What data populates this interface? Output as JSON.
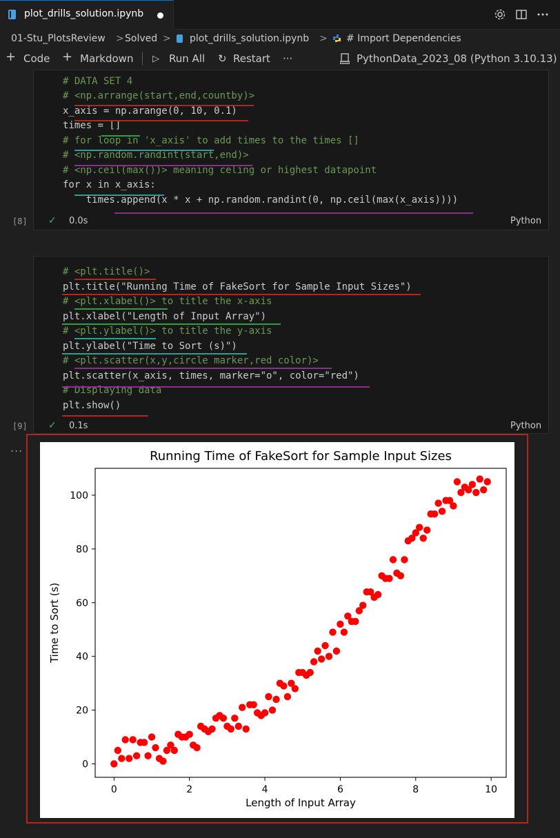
{
  "tab": {
    "title": "plot_drills_solution.ipynb",
    "modified": true
  },
  "breadcrumb": {
    "items": [
      "01-Stu_PlotsReview",
      "Solved",
      "plot_drills_solution.ipynb",
      "# Import Dependencies"
    ],
    "separator": ">"
  },
  "toolbar": {
    "code": "Code",
    "markdown": "Markdown",
    "run_all": "Run All",
    "restart": "Restart",
    "more": "···",
    "kernel": "PythonData_2023_08 (Python 3.10.13)"
  },
  "cells": [
    {
      "exec_count": "[8]",
      "duration": "0.0s",
      "language": "Python",
      "lines": [
        "# DATA SET 4",
        "# <np.arrange(start,end,countby)>",
        "x_axis = np.arange(0, 10, 0.1)",
        "times = []",
        "# for loop in 'x_axis' to add times to the times []",
        "# <np.random.randint(start,end)>",
        "# <np.ceil(max())> meaning celing or highest datapoint",
        "for x in x_axis:",
        "    times.append(x * x + np.random.randint(0, np.ceil(max(x_axis))))"
      ]
    },
    {
      "exec_count": "[9]",
      "duration": "0.1s",
      "language": "Python",
      "lines": [
        "# <plt.title()>",
        "plt.title(\"Running Time of FakeSort for Sample Input Sizes\")",
        "# <plt.xlabel()> to title the x-axis",
        "plt.xlabel(\"Length of Input Array\")",
        "# <plt.ylabel()> to title the y-axis",
        "plt.ylabel(\"Time to Sort (s)\")",
        "# <plt.scatter(x,y,circle marker,red color)>",
        "plt.scatter(x_axis, times, marker=\"o\", color=\"red\")",
        "# Displaying data",
        "plt.show()"
      ]
    }
  ],
  "output_menu": "...",
  "colors": {
    "accent": "#0078d4",
    "marker": "#ff0000",
    "highlight_frame": "#b3261e"
  },
  "chart_data": {
    "type": "scatter",
    "title": "Running Time of FakeSort for Sample Input Sizes",
    "xlabel": "Length of Input Array",
    "ylabel": "Time to Sort (s)",
    "xlim": [
      -0.5,
      10.4
    ],
    "ylim": [
      -5,
      110
    ],
    "xticks": [
      0,
      2,
      4,
      6,
      8,
      10
    ],
    "yticks": [
      0,
      20,
      40,
      60,
      80,
      100
    ],
    "grid": false,
    "marker": "o",
    "color": "red",
    "x": [
      0.0,
      0.1,
      0.2,
      0.3,
      0.4,
      0.5,
      0.6,
      0.7,
      0.8,
      0.9,
      1.0,
      1.1,
      1.2,
      1.3,
      1.4,
      1.5,
      1.6,
      1.7,
      1.8,
      1.9,
      2.0,
      2.1,
      2.2,
      2.3,
      2.4,
      2.5,
      2.6,
      2.7,
      2.8,
      2.9,
      3.0,
      3.1,
      3.2,
      3.3,
      3.4,
      3.5,
      3.6,
      3.7,
      3.8,
      3.9,
      4.0,
      4.1,
      4.2,
      4.3,
      4.4,
      4.5,
      4.6,
      4.7,
      4.8,
      4.9,
      5.0,
      5.1,
      5.2,
      5.3,
      5.4,
      5.5,
      5.6,
      5.7,
      5.8,
      5.9,
      6.0,
      6.1,
      6.2,
      6.3,
      6.4,
      6.5,
      6.6,
      6.7,
      6.8,
      6.9,
      7.0,
      7.1,
      7.2,
      7.3,
      7.4,
      7.5,
      7.6,
      7.7,
      7.8,
      7.9,
      8.0,
      8.1,
      8.2,
      8.3,
      8.4,
      8.5,
      8.6,
      8.7,
      8.8,
      8.9,
      9.0,
      9.1,
      9.2,
      9.3,
      9.4,
      9.5,
      9.6,
      9.7,
      9.8,
      9.9
    ],
    "y": [
      0,
      5,
      2,
      9,
      2,
      9,
      3,
      8,
      8,
      3,
      10,
      6,
      2,
      1,
      5,
      7,
      5,
      11,
      10,
      10,
      11,
      7,
      6,
      14,
      13,
      12,
      13,
      17,
      18,
      17,
      14,
      13,
      17,
      14,
      21,
      13,
      22,
      22,
      19,
      18,
      19,
      25,
      20,
      24,
      30,
      29,
      25,
      30,
      28,
      34,
      34,
      33,
      34,
      38,
      42,
      39,
      44,
      40,
      49,
      42,
      52,
      49,
      55,
      53,
      53,
      57,
      59,
      64,
      64,
      62,
      63,
      70,
      69,
      69,
      76,
      71,
      70,
      76,
      83,
      84,
      86,
      88,
      84,
      87,
      93,
      93,
      97,
      94,
      98,
      98,
      96,
      105,
      101,
      103,
      102,
      104,
      101,
      106,
      102,
      105
    ]
  }
}
